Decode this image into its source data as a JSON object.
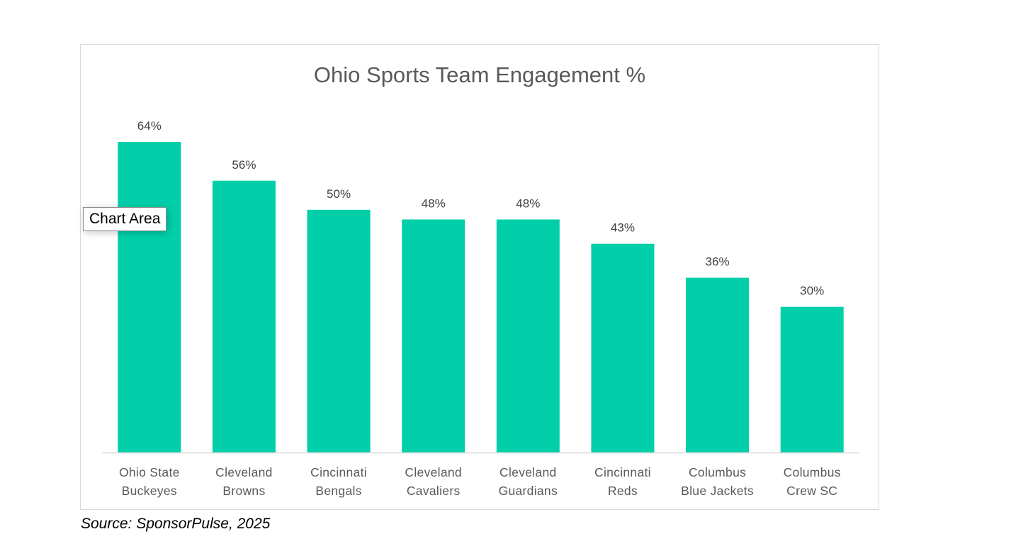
{
  "chart_data": {
    "type": "bar",
    "title": "Ohio Sports Team Engagement %",
    "categories": [
      [
        "Ohio State",
        "Buckeyes"
      ],
      [
        "Cleveland",
        "Browns"
      ],
      [
        "Cincinnati",
        "Bengals"
      ],
      [
        "Cleveland",
        "Cavaliers"
      ],
      [
        "Cleveland",
        "Guardians"
      ],
      [
        "Cincinnati",
        "Reds"
      ],
      [
        "Columbus",
        "Blue Jackets"
      ],
      [
        "Columbus",
        "Crew SC"
      ]
    ],
    "values": [
      64,
      56,
      50,
      48,
      48,
      43,
      36,
      30
    ],
    "data_labels": [
      "64%",
      "56%",
      "50%",
      "48%",
      "48%",
      "43%",
      "36%",
      "30%"
    ],
    "ylim": [
      0,
      64
    ],
    "grid": false,
    "bar_color": "#00CFAA",
    "axis_color": "#D9D9D9"
  },
  "tooltip": {
    "text": "Chart Area"
  },
  "source": "Source: SponsorPulse, 2025"
}
